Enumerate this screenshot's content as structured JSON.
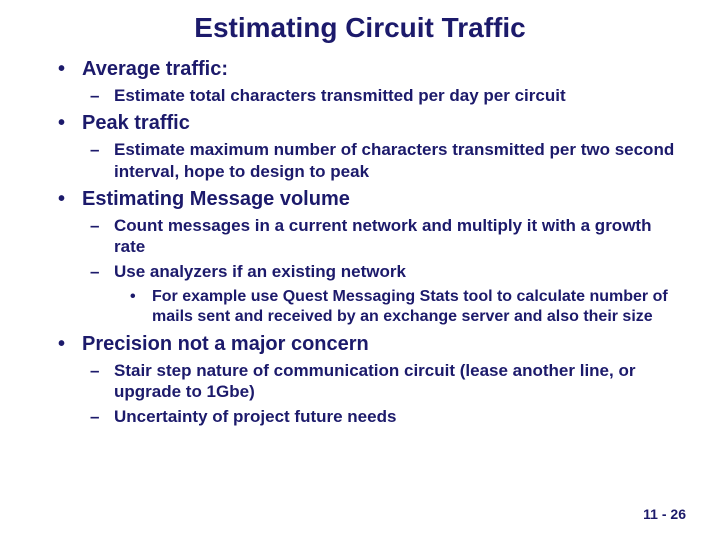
{
  "colors": {
    "text": "#1c1a6b",
    "background": "#ffffff"
  },
  "title": "Estimating Circuit Traffic",
  "bullets": {
    "avg": {
      "label": "Average traffic:",
      "sub1": "Estimate total characters transmitted per day per circuit"
    },
    "peak": {
      "label": "Peak traffic",
      "sub1": "Estimate maximum number of characters transmitted per two second interval, hope to design to peak"
    },
    "volume": {
      "label": "Estimating Message volume",
      "sub1": "Count messages in a current network and multiply it with a growth rate",
      "sub2": "Use analyzers if an existing network",
      "sub2a": "For example use Quest Messaging Stats tool to calculate number of mails sent and received by an exchange server and also their size"
    },
    "precision": {
      "label": "Precision not a major concern",
      "sub1": "Stair step nature of communication circuit (lease another line, or upgrade to 1Gbe)",
      "sub2": "Uncertainty of project future needs"
    }
  },
  "pageNumber": "11 - 26",
  "marks": {
    "l1": "•",
    "l2": "–",
    "l3": "•"
  }
}
